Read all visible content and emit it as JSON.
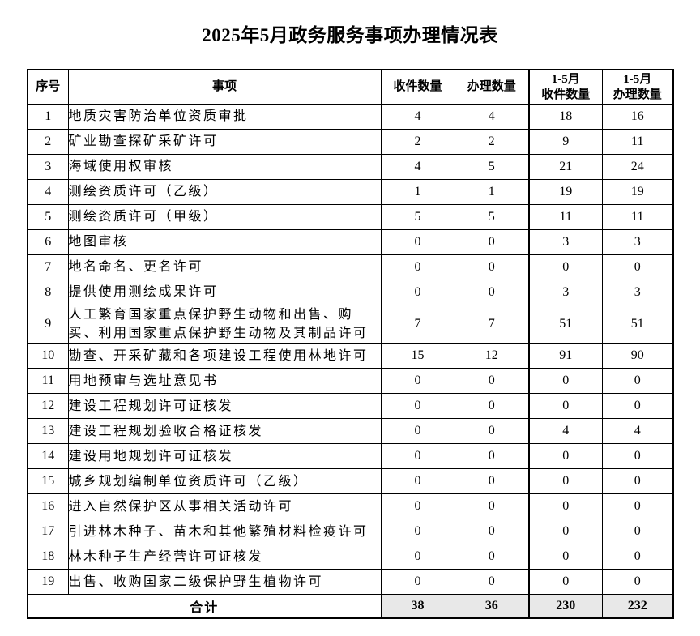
{
  "title": "2025年5月政务服务事项办理情况表",
  "colors": {
    "total_cell_bg": "#e8e8e8",
    "border": "#000000",
    "text": "#000000",
    "page_bg": "#ffffff"
  },
  "table": {
    "headers": {
      "index": "序号",
      "item": "事项",
      "received": "收件数量",
      "processed": "办理数量",
      "cum_received_line1": "1-5月",
      "cum_received_line2": "收件数量",
      "cum_processed_line1": "1-5月",
      "cum_processed_line2": "办理数量"
    },
    "rows": [
      {
        "no": "1",
        "item": "地质灾害防治单位资质审批",
        "received": "4",
        "processed": "4",
        "cum_received": "18",
        "cum_processed": "16"
      },
      {
        "no": "2",
        "item": "矿业勘查探矿采矿许可",
        "received": "2",
        "processed": "2",
        "cum_received": "9",
        "cum_processed": "11"
      },
      {
        "no": "3",
        "item": "海域使用权审核",
        "received": "4",
        "processed": "5",
        "cum_received": "21",
        "cum_processed": "24"
      },
      {
        "no": "4",
        "item": "测绘资质许可（乙级）",
        "received": "1",
        "processed": "1",
        "cum_received": "19",
        "cum_processed": "19"
      },
      {
        "no": "5",
        "item": "测绘资质许可（甲级）",
        "received": "5",
        "processed": "5",
        "cum_received": "11",
        "cum_processed": "11"
      },
      {
        "no": "6",
        "item": "地图审核",
        "received": "0",
        "processed": "0",
        "cum_received": "3",
        "cum_processed": "3"
      },
      {
        "no": "7",
        "item": "地名命名、更名许可",
        "received": "0",
        "processed": "0",
        "cum_received": "0",
        "cum_processed": "0"
      },
      {
        "no": "8",
        "item": "提供使用测绘成果许可",
        "received": "0",
        "processed": "0",
        "cum_received": "3",
        "cum_processed": "3"
      },
      {
        "no": "9",
        "item": "人工繁育国家重点保护野生动物和出售、购买、利用国家重点保护野生动物及其制品许可",
        "received": "7",
        "processed": "7",
        "cum_received": "51",
        "cum_processed": "51"
      },
      {
        "no": "10",
        "item": "勘查、开采矿藏和各项建设工程使用林地许可",
        "received": "15",
        "processed": "12",
        "cum_received": "91",
        "cum_processed": "90"
      },
      {
        "no": "11",
        "item": "用地预审与选址意见书",
        "received": "0",
        "processed": "0",
        "cum_received": "0",
        "cum_processed": "0"
      },
      {
        "no": "12",
        "item": "建设工程规划许可证核发",
        "received": "0",
        "processed": "0",
        "cum_received": "0",
        "cum_processed": "0"
      },
      {
        "no": "13",
        "item": "建设工程规划验收合格证核发",
        "received": "0",
        "processed": "0",
        "cum_received": "4",
        "cum_processed": "4"
      },
      {
        "no": "14",
        "item": "建设用地规划许可证核发",
        "received": "0",
        "processed": "0",
        "cum_received": "0",
        "cum_processed": "0"
      },
      {
        "no": "15",
        "item": "城乡规划编制单位资质许可（乙级）",
        "received": "0",
        "processed": "0",
        "cum_received": "0",
        "cum_processed": "0"
      },
      {
        "no": "16",
        "item": "进入自然保护区从事相关活动许可",
        "received": "0",
        "processed": "0",
        "cum_received": "0",
        "cum_processed": "0"
      },
      {
        "no": "17",
        "item": "引进林木种子、苗木和其他繁殖材料检疫许可",
        "received": "0",
        "processed": "0",
        "cum_received": "0",
        "cum_processed": "0"
      },
      {
        "no": "18",
        "item": "林木种子生产经营许可证核发",
        "received": "0",
        "processed": "0",
        "cum_received": "0",
        "cum_processed": "0"
      },
      {
        "no": "19",
        "item": "出售、收购国家二级保护野生植物许可",
        "received": "0",
        "processed": "0",
        "cum_received": "0",
        "cum_processed": "0"
      }
    ],
    "total": {
      "label": "合计",
      "received": "38",
      "processed": "36",
      "cum_received": "230",
      "cum_processed": "232"
    }
  }
}
